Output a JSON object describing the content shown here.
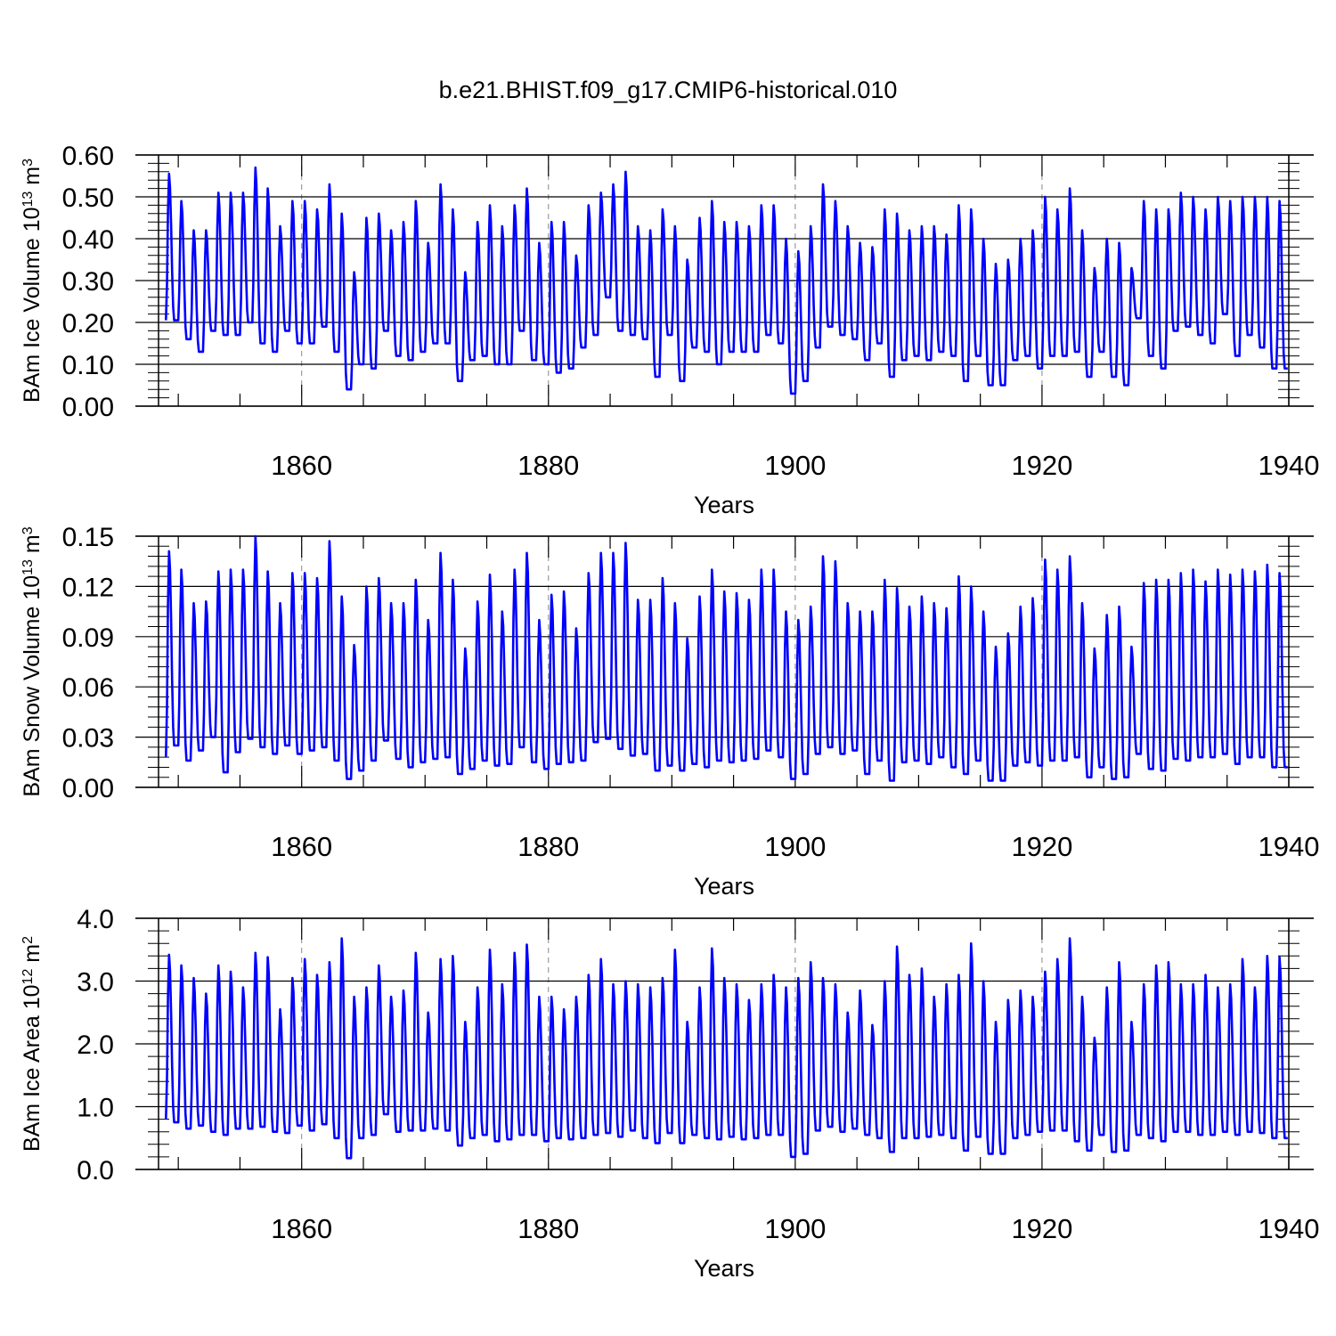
{
  "title": "b.e21.BHIST.f09_g17.CMIP6-historical.010",
  "chart_data": [
    {
      "type": "line",
      "id": "ice-volume",
      "title": "b.e21.BHIST.f09_g17.CMIP6-historical.010",
      "ylabel_main": "BAm Ice Volume 10",
      "ylabel_exp": "13",
      "ylabel_unit": " m",
      "ylabel_unit_exp": "3",
      "xlabel": "Years",
      "xlim": [
        1848.4,
        1940.0
      ],
      "ylim": [
        0.0,
        0.6
      ],
      "yticks": [
        "0.00",
        "0.10",
        "0.20",
        "0.30",
        "0.40",
        "0.50",
        "0.60"
      ],
      "ytick_values": [
        0.0,
        0.1,
        0.2,
        0.3,
        0.4,
        0.5,
        0.6
      ],
      "xticks": [
        "1860",
        "1880",
        "1900",
        "1920",
        "1940"
      ],
      "xtick_values": [
        1860,
        1880,
        1900,
        1920,
        1940
      ],
      "gridlines_x": [
        1860,
        1880,
        1900,
        1920
      ],
      "line_color": "#0000ff",
      "start_year": 1849,
      "series_name": "BAm Ice Volume",
      "annual_max": [
        0.555,
        0.49,
        0.42,
        0.42,
        0.51,
        0.51,
        0.51,
        0.57,
        0.52,
        0.43,
        0.49,
        0.49,
        0.47,
        0.53,
        0.46,
        0.32,
        0.45,
        0.46,
        0.42,
        0.44,
        0.49,
        0.39,
        0.53,
        0.47,
        0.32,
        0.44,
        0.48,
        0.43,
        0.48,
        0.52,
        0.39,
        0.44,
        0.44,
        0.36,
        0.48,
        0.51,
        0.53,
        0.56,
        0.43,
        0.42,
        0.47,
        0.43,
        0.35,
        0.45,
        0.49,
        0.44,
        0.44,
        0.43,
        0.48,
        0.48,
        0.4,
        0.37,
        0.43,
        0.53,
        0.49,
        0.43,
        0.39,
        0.38,
        0.47,
        0.46,
        0.42,
        0.43,
        0.43,
        0.41,
        0.48,
        0.47,
        0.4,
        0.34,
        0.35,
        0.4,
        0.42,
        0.5,
        0.47,
        0.52,
        0.42,
        0.33,
        0.4,
        0.39,
        0.33,
        0.49,
        0.47,
        0.47,
        0.51,
        0.5,
        0.47,
        0.5,
        0.49,
        0.5,
        0.5,
        0.5,
        0.49
      ],
      "annual_min": [
        0.205,
        0.205,
        0.16,
        0.13,
        0.18,
        0.17,
        0.17,
        0.2,
        0.15,
        0.13,
        0.18,
        0.15,
        0.15,
        0.19,
        0.13,
        0.04,
        0.1,
        0.09,
        0.18,
        0.12,
        0.11,
        0.13,
        0.15,
        0.15,
        0.06,
        0.11,
        0.12,
        0.1,
        0.1,
        0.18,
        0.11,
        0.1,
        0.08,
        0.09,
        0.14,
        0.17,
        0.26,
        0.18,
        0.17,
        0.16,
        0.07,
        0.17,
        0.06,
        0.14,
        0.13,
        0.1,
        0.13,
        0.13,
        0.13,
        0.17,
        0.15,
        0.03,
        0.06,
        0.14,
        0.19,
        0.17,
        0.16,
        0.11,
        0.15,
        0.07,
        0.11,
        0.12,
        0.11,
        0.13,
        0.12,
        0.06,
        0.12,
        0.05,
        0.05,
        0.11,
        0.12,
        0.09,
        0.12,
        0.12,
        0.13,
        0.07,
        0.13,
        0.07,
        0.05,
        0.21,
        0.12,
        0.09,
        0.18,
        0.19,
        0.17,
        0.15,
        0.22,
        0.12,
        0.17,
        0.14,
        0.09
      ]
    },
    {
      "type": "line",
      "id": "snow-volume",
      "title": "",
      "ylabel_main": "BAm Snow Volume 10",
      "ylabel_exp": "13",
      "ylabel_unit": " m",
      "ylabel_unit_exp": "3",
      "xlabel": "Years",
      "xlim": [
        1848.4,
        1940.0
      ],
      "ylim": [
        0.0,
        0.15
      ],
      "yticks": [
        "0.00",
        "0.03",
        "0.06",
        "0.09",
        "0.12",
        "0.15"
      ],
      "ytick_values": [
        0.0,
        0.03,
        0.06,
        0.09,
        0.12,
        0.15
      ],
      "xticks": [
        "1860",
        "1880",
        "1900",
        "1920",
        "1940"
      ],
      "xtick_values": [
        1860,
        1880,
        1900,
        1920,
        1940
      ],
      "gridlines_x": [
        1860,
        1880,
        1900,
        1920
      ],
      "line_color": "#0000ff",
      "start_year": 1849,
      "series_name": "BAm Snow Volume",
      "annual_max": [
        0.141,
        0.13,
        0.11,
        0.111,
        0.129,
        0.13,
        0.13,
        0.15,
        0.129,
        0.11,
        0.128,
        0.128,
        0.125,
        0.147,
        0.114,
        0.085,
        0.12,
        0.125,
        0.11,
        0.11,
        0.124,
        0.1,
        0.14,
        0.124,
        0.083,
        0.111,
        0.127,
        0.105,
        0.13,
        0.14,
        0.1,
        0.115,
        0.117,
        0.095,
        0.128,
        0.14,
        0.14,
        0.146,
        0.112,
        0.112,
        0.125,
        0.11,
        0.089,
        0.114,
        0.13,
        0.117,
        0.116,
        0.112,
        0.13,
        0.13,
        0.105,
        0.1,
        0.108,
        0.138,
        0.135,
        0.11,
        0.105,
        0.105,
        0.124,
        0.119,
        0.108,
        0.114,
        0.11,
        0.107,
        0.126,
        0.12,
        0.105,
        0.084,
        0.092,
        0.108,
        0.113,
        0.136,
        0.13,
        0.138,
        0.11,
        0.083,
        0.103,
        0.108,
        0.084,
        0.122,
        0.124,
        0.124,
        0.128,
        0.13,
        0.123,
        0.13,
        0.127,
        0.13,
        0.129,
        0.133,
        0.128
      ],
      "annual_min": [
        0.018,
        0.025,
        0.016,
        0.022,
        0.03,
        0.009,
        0.021,
        0.029,
        0.024,
        0.02,
        0.025,
        0.02,
        0.022,
        0.024,
        0.016,
        0.005,
        0.01,
        0.016,
        0.028,
        0.017,
        0.012,
        0.015,
        0.017,
        0.018,
        0.008,
        0.011,
        0.016,
        0.013,
        0.014,
        0.024,
        0.015,
        0.011,
        0.014,
        0.015,
        0.016,
        0.027,
        0.029,
        0.023,
        0.019,
        0.02,
        0.01,
        0.013,
        0.01,
        0.014,
        0.012,
        0.016,
        0.015,
        0.016,
        0.017,
        0.022,
        0.018,
        0.005,
        0.008,
        0.02,
        0.024,
        0.02,
        0.022,
        0.008,
        0.016,
        0.004,
        0.015,
        0.016,
        0.014,
        0.018,
        0.012,
        0.008,
        0.016,
        0.004,
        0.004,
        0.013,
        0.015,
        0.013,
        0.016,
        0.016,
        0.018,
        0.006,
        0.012,
        0.005,
        0.006,
        0.02,
        0.011,
        0.01,
        0.017,
        0.016,
        0.018,
        0.018,
        0.02,
        0.014,
        0.018,
        0.018,
        0.012
      ]
    },
    {
      "type": "line",
      "id": "ice-area",
      "title": "",
      "ylabel_main": "BAm Ice Area 10",
      "ylabel_exp": "12",
      "ylabel_unit": " m",
      "ylabel_unit_exp": "2",
      "xlabel": "Years",
      "xlim": [
        1848.4,
        1940.0
      ],
      "ylim": [
        0.0,
        4.0
      ],
      "yticks": [
        "0.0",
        "1.0",
        "2.0",
        "3.0",
        "4.0"
      ],
      "ytick_values": [
        0.0,
        1.0,
        2.0,
        3.0,
        4.0
      ],
      "xticks": [
        "1860",
        "1880",
        "1900",
        "1920",
        "1940"
      ],
      "xtick_values": [
        1860,
        1880,
        1900,
        1920,
        1940
      ],
      "gridlines_x": [
        1860,
        1880,
        1900,
        1920
      ],
      "line_color": "#0000ff",
      "start_year": 1849,
      "series_name": "BAm Ice Area",
      "annual_max": [
        3.42,
        3.25,
        3.05,
        2.8,
        3.25,
        3.15,
        2.9,
        3.45,
        3.38,
        2.55,
        3.05,
        3.35,
        3.1,
        3.3,
        3.68,
        2.75,
        2.9,
        3.25,
        2.75,
        2.85,
        3.45,
        2.5,
        3.35,
        3.4,
        2.35,
        2.9,
        3.5,
        2.95,
        3.45,
        3.58,
        2.75,
        2.75,
        2.55,
        2.75,
        3.1,
        3.35,
        2.95,
        3.0,
        2.95,
        2.9,
        3.05,
        3.5,
        2.35,
        2.9,
        3.52,
        3.05,
        2.95,
        2.7,
        2.95,
        3.1,
        2.9,
        3.05,
        3.3,
        3.05,
        2.95,
        2.5,
        2.85,
        2.3,
        3.0,
        3.55,
        3.1,
        3.2,
        2.75,
        2.95,
        3.1,
        3.6,
        3.0,
        2.35,
        2.7,
        2.85,
        2.75,
        3.15,
        3.35,
        3.68,
        2.75,
        2.1,
        2.9,
        3.3,
        2.35,
        2.95,
        3.25,
        3.3,
        2.95,
        2.95,
        3.1,
        2.9,
        2.95,
        3.35,
        2.9,
        3.4,
        3.38
      ],
      "annual_min": [
        0.8,
        0.75,
        0.65,
        0.7,
        0.6,
        0.55,
        0.65,
        0.65,
        0.68,
        0.6,
        0.58,
        0.7,
        0.62,
        0.72,
        0.5,
        0.18,
        0.5,
        0.55,
        0.88,
        0.6,
        0.62,
        0.62,
        0.65,
        0.62,
        0.38,
        0.5,
        0.55,
        0.45,
        0.48,
        0.55,
        0.55,
        0.45,
        0.5,
        0.48,
        0.5,
        0.55,
        0.58,
        0.52,
        0.62,
        0.5,
        0.42,
        0.58,
        0.42,
        0.55,
        0.5,
        0.48,
        0.52,
        0.48,
        0.5,
        0.55,
        0.55,
        0.2,
        0.25,
        0.62,
        0.68,
        0.6,
        0.65,
        0.55,
        0.5,
        0.28,
        0.5,
        0.5,
        0.52,
        0.55,
        0.5,
        0.3,
        0.52,
        0.25,
        0.25,
        0.5,
        0.55,
        0.6,
        0.62,
        0.62,
        0.45,
        0.3,
        0.55,
        0.28,
        0.3,
        0.55,
        0.5,
        0.45,
        0.6,
        0.6,
        0.55,
        0.55,
        0.6,
        0.55,
        0.6,
        0.58,
        0.5
      ]
    }
  ]
}
